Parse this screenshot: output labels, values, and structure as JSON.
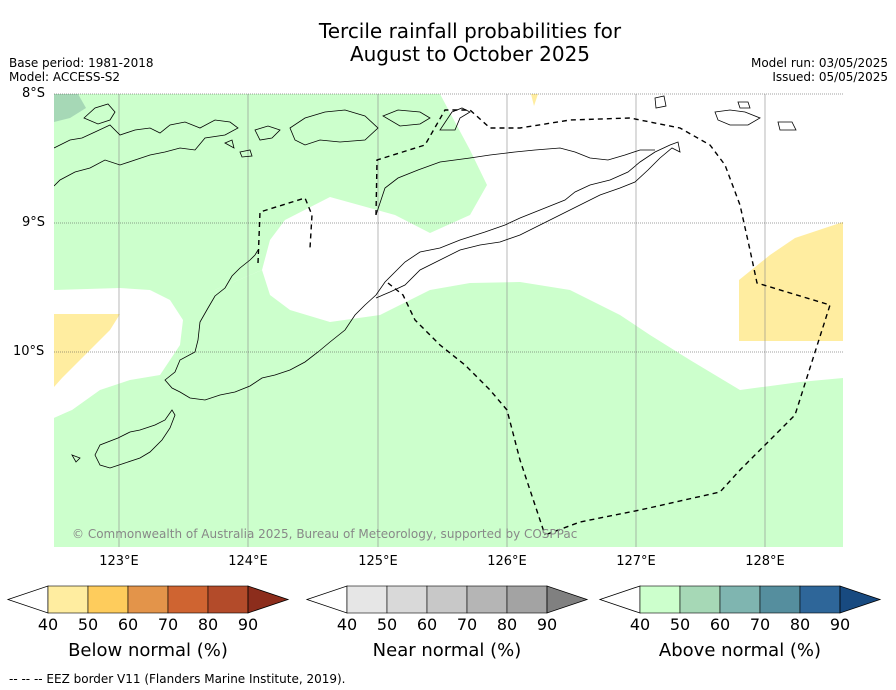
{
  "title_line1": "Tercile rainfall probabilities for",
  "title_line2": "August to October 2025",
  "meta": {
    "base_period": "Base period: 1981-2018",
    "model": "Model: ACCESS-S2",
    "model_run": "Model run: 03/05/2025",
    "issued": "Issued: 05/05/2025"
  },
  "map": {
    "lat_labels": [
      "8°S",
      "9°S",
      "10°S"
    ],
    "lon_labels": [
      "123°E",
      "124°E",
      "125°E",
      "126°E",
      "127°E",
      "128°E"
    ],
    "copyright": "© Commonwealth of Australia 2025, Bureau of Meteorology, supported by COSPPac"
  },
  "colorbars": [
    {
      "title": "Below normal (%)",
      "ticks": [
        "40",
        "50",
        "60",
        "70",
        "80",
        "90"
      ],
      "colors": [
        "#ffeda0",
        "#fecc5c",
        "#e3944a",
        "#cf6431",
        "#b34b2a",
        "#8c2d1c"
      ]
    },
    {
      "title": "Near normal (%)",
      "ticks": [
        "40",
        "50",
        "60",
        "70",
        "80",
        "90"
      ],
      "colors": [
        "#e6e6e6",
        "#d9d9d9",
        "#c8c8c8",
        "#b5b5b5",
        "#a3a3a3",
        "#808080"
      ]
    },
    {
      "title": "Above normal (%)",
      "ticks": [
        "40",
        "50",
        "60",
        "70",
        "80",
        "90"
      ],
      "colors": [
        "#ccffcc",
        "#a6d8b6",
        "#7fb5b0",
        "#558e9e",
        "#2e6699",
        "#184a80"
      ]
    }
  ],
  "footer": "--  --  -- EEZ border V11 (Flanders Marine Institute, 2019)."
}
